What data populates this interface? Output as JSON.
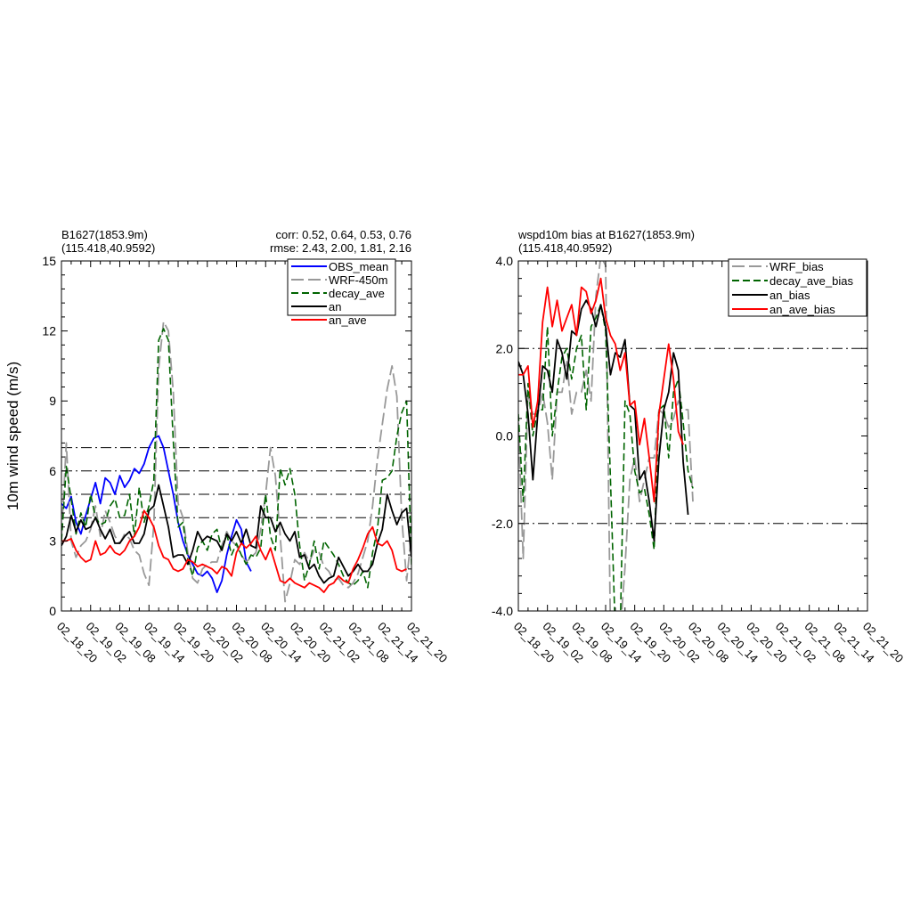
{
  "chart_data": [
    {
      "type": "line",
      "header_left": [
        "B1627(1853.9m)",
        "(115.418,40.9592)"
      ],
      "header_right": [
        "corr:  0.52, 0.64, 0.53, 0.76",
        "rmse: 2.43, 2.00, 1.81, 2.16"
      ],
      "ylabel": "10m wind speed (m/s)",
      "ylim": [
        0,
        15
      ],
      "yticks": [
        "0",
        "3",
        "6",
        "9",
        "12",
        "15"
      ],
      "xlim": [
        0,
        72
      ],
      "xtick_labels": [
        "02_18_20",
        "02_19_02",
        "02_19_08",
        "02_19_14",
        "02_19_20",
        "02_20_02",
        "02_20_08",
        "02_20_14",
        "02_20_20",
        "02_21_02",
        "02_21_08",
        "02_21_14",
        "02_21_20"
      ],
      "ref_lines": [
        4,
        5,
        6,
        7
      ],
      "legend_position": "top-right",
      "series": [
        {
          "name": "OBS_mean",
          "color": "#0000ff",
          "dash": "solid",
          "values": [
            4.6,
            4.4,
            4.9,
            3.8,
            3.3,
            4.1,
            4.8,
            5.5,
            4.6,
            5.7,
            5.5,
            5.0,
            5.8,
            5.3,
            5.6,
            6.1,
            5.9,
            6.3,
            7.0,
            7.4,
            7.5,
            7.0,
            6.0,
            5.0,
            3.8,
            3.0,
            2.4,
            2.0,
            1.6,
            1.5,
            1.7,
            1.4,
            0.8,
            1.3,
            2.4,
            3.2,
            3.9,
            3.5,
            2.1,
            1.7
          ]
        },
        {
          "name": "WRF-450m",
          "color": "#999999",
          "dash": "long",
          "values": [
            3.2,
            7.2,
            3.0,
            2.3,
            2.8,
            3.0,
            3.5,
            4.5,
            3.2,
            4.3,
            3.8,
            3.2,
            2.9,
            3.3,
            3.1,
            2.6,
            2.4,
            1.6,
            1.1,
            3.7,
            10.4,
            12.4,
            12.0,
            9.4,
            4.6,
            4.0,
            2.5,
            1.4,
            1.2,
            1.8,
            2.0,
            2.1,
            2.1,
            2.8,
            3.4,
            3.0,
            2.8,
            2.4,
            2.1,
            2.3,
            2.5,
            3.5,
            5.0,
            7.0,
            5.8,
            3.2,
            0.4,
            1.2,
            2.2,
            2.0,
            2.5,
            2.1,
            2.6,
            2.5,
            1.9,
            1.7,
            1.3,
            1.4,
            1.1,
            1.0,
            1.2,
            1.6,
            2.3,
            3.0,
            4.5,
            6.5,
            8.0,
            9.5,
            10.5,
            9.2,
            4.0,
            1.3,
            3.3
          ]
        },
        {
          "name": "decay_ave",
          "color": "#006400",
          "dash": "medium",
          "values": [
            3.0,
            6.2,
            4.8,
            3.3,
            4.2,
            3.6,
            5.0,
            4.0,
            3.7,
            3.8,
            4.5,
            4.8,
            4.0,
            4.1,
            5.0,
            3.2,
            5.3,
            3.8,
            4.5,
            5.6,
            11.6,
            12.1,
            11.6,
            7.3,
            3.6,
            3.8,
            2.2,
            1.5,
            2.7,
            3.0,
            2.6,
            3.3,
            3.5,
            2.6,
            3.3,
            2.4,
            2.9,
            2.4,
            2.0,
            2.4,
            2.3,
            2.7,
            5.0,
            3.2,
            2.6,
            6.1,
            5.4,
            6.1,
            5.0,
            2.8,
            1.3,
            2.0,
            3.0,
            1.8,
            3.0,
            2.7,
            2.4,
            2.0,
            1.5,
            1.2,
            1.1,
            1.3,
            1.7,
            1.0,
            2.5,
            3.5,
            5.6,
            5.7,
            6.0,
            7.5,
            8.5,
            9.0,
            2.0,
            3.6
          ]
        },
        {
          "name": "an",
          "color": "#000000",
          "dash": "solid",
          "values": [
            2.8,
            3.2,
            4.1,
            3.4,
            3.9,
            3.5,
            3.6,
            4.0,
            3.5,
            3.1,
            3.5,
            2.9,
            2.9,
            3.2,
            3.4,
            2.9,
            2.9,
            3.3,
            4.3,
            4.5,
            5.4,
            4.5,
            3.6,
            2.3,
            2.4,
            2.4,
            2.0,
            2.6,
            3.4,
            3.0,
            3.2,
            3.1,
            3.0,
            2.6,
            3.3,
            3.0,
            3.4,
            2.9,
            3.5,
            2.8,
            2.7,
            4.5,
            4.0,
            4.0,
            3.4,
            3.8,
            3.3,
            3.0,
            3.4,
            2.3,
            2.4,
            1.8,
            2.0,
            1.5,
            1.2,
            1.4,
            1.5,
            2.3,
            1.9,
            1.5,
            1.7,
            2.0,
            1.7,
            1.7,
            2.0,
            2.9,
            3.5,
            5.0,
            4.3,
            3.7,
            4.2,
            4.4,
            2.3
          ]
        },
        {
          "name": "an_ave",
          "color": "#ff0000",
          "dash": "solid",
          "values": [
            3.0,
            3.0,
            3.1,
            2.6,
            2.3,
            2.1,
            2.2,
            3.0,
            2.4,
            2.5,
            2.8,
            2.5,
            2.4,
            2.6,
            3.0,
            3.2,
            3.6,
            4.3,
            4.0,
            3.6,
            2.8,
            2.3,
            2.2,
            1.8,
            1.7,
            1.8,
            2.2,
            2.1,
            1.9,
            2.0,
            1.9,
            1.8,
            1.6,
            1.9,
            1.8,
            1.5,
            2.5,
            2.9,
            2.7,
            2.9,
            3.2,
            2.6,
            2.2,
            2.7,
            2.0,
            1.3,
            1.2,
            1.4,
            1.2,
            1.1,
            1.0,
            1.2,
            1.1,
            1.0,
            0.8,
            1.1,
            1.2,
            1.5,
            1.3,
            1.2,
            1.8,
            2.2,
            2.7,
            3.3,
            3.6,
            2.9,
            2.8,
            3.0,
            2.6,
            1.8,
            1.7,
            1.8
          ]
        }
      ]
    },
    {
      "type": "line",
      "title": [
        "wspd10m bias at B1627(1853.9m)",
        "(115.418,40.9592)"
      ],
      "ylim": [
        -4,
        4
      ],
      "yticks": [
        "-4.0",
        "-2.0",
        "0.0",
        "2.0",
        "4.0"
      ],
      "xlim": [
        0,
        72
      ],
      "xtick_labels": [
        "02_18_20",
        "02_19_02",
        "02_19_08",
        "02_19_14",
        "02_19_20",
        "02_20_02",
        "02_20_08",
        "02_20_14",
        "02_20_20",
        "02_21_02",
        "02_21_08",
        "02_21_14",
        "02_21_20"
      ],
      "ref_lines": [
        -2,
        2
      ],
      "legend_position": "top-right",
      "series": [
        {
          "name": "WRF_bias",
          "color": "#999999",
          "dash": "long",
          "values": [
            0.3,
            -2.8,
            1.0,
            0.5,
            0.5,
            1.0,
            0.3,
            -1.0,
            1.0,
            1.0,
            1.7,
            0.5,
            1.0,
            1.0,
            1.5,
            0.8,
            3.2,
            4.1,
            3.9,
            -4.5,
            -4.5,
            -4.5,
            -3.0,
            -1.0,
            -0.5,
            -1.5,
            -1.0,
            -0.5,
            -0.5,
            0.6,
            0.5,
            0.2,
            0.4,
            0.8,
            0.6,
            0.6,
            -1.5
          ]
        },
        {
          "name": "decay_ave_bias",
          "color": "#006400",
          "dash": "medium",
          "values": [
            0.5,
            -1.5,
            1.2,
            0.0,
            0.6,
            0.6,
            2.5,
            0.0,
            1.0,
            1.8,
            2.0,
            1.3,
            2.0,
            2.3,
            0.6,
            2.5,
            2.7,
            3.0,
            2.4,
            -1.0,
            -4.5,
            -4.5,
            0.8,
            0.5,
            -0.8,
            -1.3,
            -1.2,
            -1.8,
            -2.6,
            0.6,
            0.7,
            -0.5,
            1.0,
            1.3,
            0.3,
            -0.8,
            -1.2
          ]
        },
        {
          "name": "an_bias",
          "color": "#000000",
          "dash": "solid",
          "values": [
            1.7,
            1.4,
            0.5,
            -1.0,
            0.5,
            1.6,
            1.5,
            1.0,
            2.2,
            1.9,
            1.3,
            2.4,
            2.3,
            2.9,
            3.1,
            2.9,
            2.5,
            3.0,
            2.5,
            1.4,
            1.9,
            1.8,
            2.2,
            0.7,
            0.6,
            -1.0,
            -0.8,
            -1.5,
            -2.4,
            -0.5,
            0.6,
            1.0,
            1.9,
            1.5,
            -0.6,
            -1.8
          ]
        },
        {
          "name": "an_ave_bias",
          "color": "#ff0000",
          "dash": "solid",
          "values": [
            1.4,
            1.4,
            1.6,
            0.2,
            0.8,
            2.6,
            3.4,
            2.5,
            3.1,
            2.4,
            2.7,
            3.0,
            2.3,
            3.4,
            3.3,
            2.8,
            3.1,
            3.6,
            2.7,
            2.3,
            2.1,
            1.5,
            1.9,
            0.7,
            0.8,
            -0.2,
            0.4,
            -0.5,
            -1.5,
            0.5,
            1.3,
            2.1,
            1.3,
            0.1,
            -0.2
          ]
        }
      ]
    }
  ]
}
